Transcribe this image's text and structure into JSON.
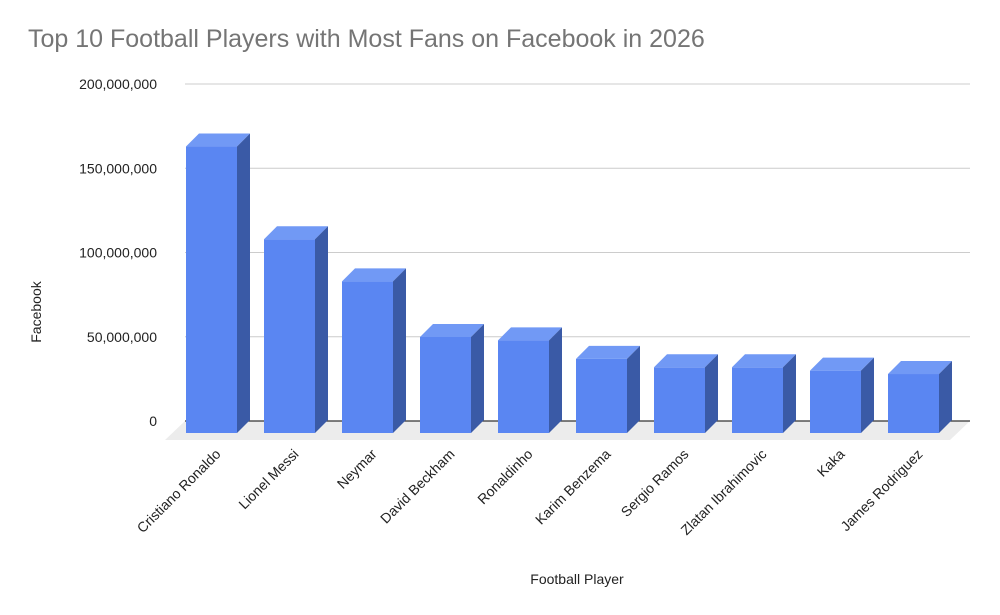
{
  "chart_data": {
    "type": "bar",
    "style": "3d-column",
    "title": "Top 10 Football Players with Most Fans on Facebook in 2026",
    "xlabel": "Football Player",
    "ylabel": "Facebook",
    "ylim": [
      0,
      200000000
    ],
    "yticks": [
      0,
      50000000,
      100000000,
      150000000,
      200000000
    ],
    "ytick_labels": [
      "0",
      "50,000,000",
      "100,000,000",
      "150,000,000",
      "200,000,000"
    ],
    "grid": true,
    "legend": "none",
    "categories": [
      "Cristiano Ronaldo",
      "Lionel Messi",
      "Neymar",
      "David Beckham",
      "Ronaldinho",
      "Karim Benzema",
      "Sergio Ramos",
      "Zlatan Ibrahimovic",
      "Kaka",
      "James Rodriguez"
    ],
    "series": [
      {
        "name": "Facebook",
        "values": [
          170000000,
          115000000,
          90000000,
          57000000,
          55000000,
          44000000,
          39000000,
          39000000,
          37000000,
          35000000
        ]
      }
    ]
  },
  "colors": {
    "bar_front": "#5a86f2",
    "bar_top": "#7199f5",
    "bar_side": "#3a5aa6",
    "gridline": "#cccccc",
    "floor": "#ececec",
    "baseline": "#333333",
    "title": "#757575",
    "text": "#222222"
  }
}
